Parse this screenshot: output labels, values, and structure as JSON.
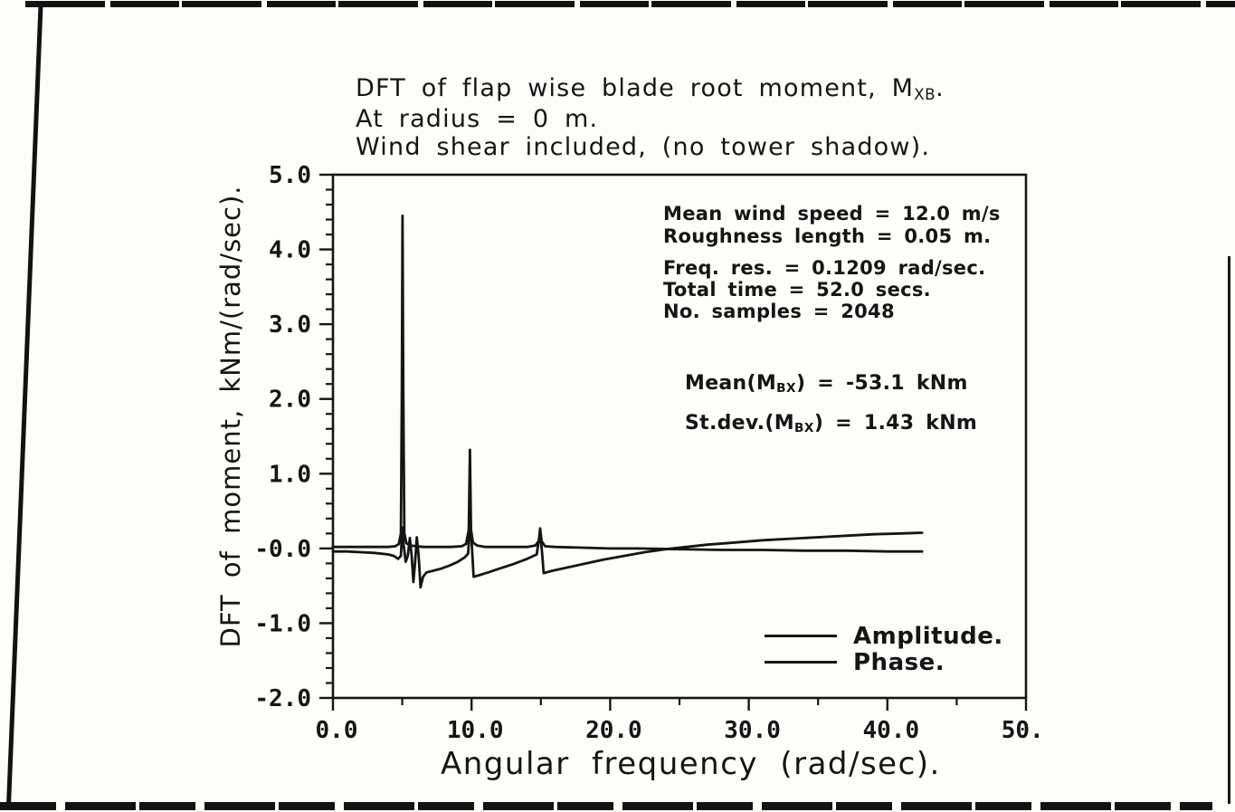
{
  "title": {
    "line1_pre": "DFT of flap wise blade root moment, M",
    "line1_sub": "XB",
    "line1_post": ".",
    "line2": "At radius = 0 m.",
    "line3": "Wind shear included, (no tower shadow)."
  },
  "annotations": {
    "wind": [
      "Mean wind speed = 12.0 m/s",
      "Roughness length = 0.05 m."
    ],
    "dft": [
      "Freq. res. = 0.1209 rad/sec.",
      "Total time = 52.0 secs.",
      "No. samples = 2048"
    ],
    "mean": {
      "pre": "Mean(M",
      "sub": "BX",
      "post": ") = -53.1 kNm"
    },
    "stdev": {
      "pre": "St.dev.(M",
      "sub": "BX",
      "post": ") = 1.43 kNm"
    }
  },
  "legend": {
    "items": [
      "Amplitude.",
      "Phase."
    ]
  },
  "chart_data": {
    "type": "line",
    "title": "DFT of flap wise blade root moment, MXB. At radius = 0 m. Wind shear included, (no tower shadow).",
    "xlabel": "Angular frequency (rad/sec).",
    "ylabel": "DFT of moment, kNm/(rad/sec).",
    "xlim": [
      0,
      50
    ],
    "ylim": [
      -2,
      5
    ],
    "grid": false,
    "legend_position": "lower right inside",
    "x_major_ticks": [
      0,
      10,
      20,
      30,
      40,
      50
    ],
    "x_tick_labels": [
      "0.0",
      "10.0",
      "20.0",
      "30.0",
      "40.0",
      "50.0"
    ],
    "x_minor_ticks": [
      5,
      15,
      25,
      35,
      45
    ],
    "y_major_ticks": [
      5,
      4,
      3,
      2,
      1,
      0,
      -1,
      -2
    ],
    "y_tick_labels": [
      "5.0",
      "4.0",
      "3.0",
      "2.0",
      "1.0",
      "-0.0",
      "-1.0",
      "-2.0"
    ],
    "y_minor_step": 0.2,
    "ink_color": "#151515",
    "paper_color": "#fdfdfa",
    "series": [
      {
        "name": "Amplitude.",
        "points": [
          [
            0,
            0.02
          ],
          [
            2,
            0.02
          ],
          [
            4,
            0.02
          ],
          [
            4.5,
            0.03
          ],
          [
            4.75,
            0.06
          ],
          [
            4.9,
            0.2
          ],
          [
            4.97,
            2.0
          ],
          [
            5.02,
            4.45
          ],
          [
            5.08,
            2.0
          ],
          [
            5.15,
            0.2
          ],
          [
            5.3,
            0.07
          ],
          [
            5.6,
            0.04
          ],
          [
            6.0,
            0.03
          ],
          [
            6.5,
            0.02
          ],
          [
            7.5,
            0.02
          ],
          [
            8.5,
            0.02
          ],
          [
            9.3,
            0.03
          ],
          [
            9.6,
            0.06
          ],
          [
            9.8,
            0.25
          ],
          [
            9.88,
            1.32
          ],
          [
            9.96,
            0.25
          ],
          [
            10.1,
            0.08
          ],
          [
            10.4,
            0.04
          ],
          [
            11,
            0.02
          ],
          [
            12,
            0.02
          ],
          [
            13,
            0.02
          ],
          [
            14,
            0.02
          ],
          [
            14.6,
            0.04
          ],
          [
            14.85,
            0.1
          ],
          [
            14.95,
            0.27
          ],
          [
            15.05,
            0.1
          ],
          [
            15.3,
            0.03
          ],
          [
            16,
            0.02
          ],
          [
            18,
            0.01
          ],
          [
            20,
            0
          ],
          [
            22,
            0
          ],
          [
            25,
            -0.01
          ],
          [
            28,
            -0.02
          ],
          [
            31,
            -0.02
          ],
          [
            34,
            -0.03
          ],
          [
            37,
            -0.03
          ],
          [
            40,
            -0.04
          ],
          [
            42.5,
            -0.04
          ]
        ]
      },
      {
        "name": "Phase.",
        "points": [
          [
            0,
            -0.04
          ],
          [
            1,
            -0.04
          ],
          [
            2,
            -0.05
          ],
          [
            3,
            -0.06
          ],
          [
            4,
            -0.08
          ],
          [
            4.4,
            -0.1
          ],
          [
            4.7,
            -0.14
          ],
          [
            4.9,
            -0.1
          ],
          [
            5.0,
            0.28
          ],
          [
            5.1,
            0.05
          ],
          [
            5.25,
            -0.18
          ],
          [
            5.4,
            -0.1
          ],
          [
            5.55,
            0.14
          ],
          [
            5.68,
            -0.1
          ],
          [
            5.8,
            -0.45
          ],
          [
            5.92,
            -0.2
          ],
          [
            6.05,
            0.15
          ],
          [
            6.18,
            -0.1
          ],
          [
            6.32,
            -0.52
          ],
          [
            6.5,
            -0.38
          ],
          [
            6.75,
            -0.32
          ],
          [
            7.2,
            -0.3
          ],
          [
            7.8,
            -0.27
          ],
          [
            8.4,
            -0.23
          ],
          [
            9.0,
            -0.18
          ],
          [
            9.5,
            -0.12
          ],
          [
            9.75,
            -0.07
          ],
          [
            9.88,
            0.32
          ],
          [
            10.0,
            0.1
          ],
          [
            10.15,
            -0.38
          ],
          [
            10.5,
            -0.36
          ],
          [
            11.2,
            -0.32
          ],
          [
            12.0,
            -0.27
          ],
          [
            13.0,
            -0.21
          ],
          [
            14.0,
            -0.14
          ],
          [
            14.7,
            -0.08
          ],
          [
            14.95,
            0.22
          ],
          [
            15.1,
            -0.08
          ],
          [
            15.2,
            -0.33
          ],
          [
            15.8,
            -0.3
          ],
          [
            16.8,
            -0.26
          ],
          [
            18,
            -0.21
          ],
          [
            19.5,
            -0.15
          ],
          [
            21,
            -0.1
          ],
          [
            22.5,
            -0.05
          ],
          [
            24,
            -0.01
          ],
          [
            25.5,
            0.02
          ],
          [
            27,
            0.05
          ],
          [
            29,
            0.08
          ],
          [
            31,
            0.11
          ],
          [
            33,
            0.13
          ],
          [
            35,
            0.15
          ],
          [
            37,
            0.17
          ],
          [
            39,
            0.19
          ],
          [
            41,
            0.2
          ],
          [
            42.5,
            0.21
          ]
        ]
      }
    ]
  }
}
